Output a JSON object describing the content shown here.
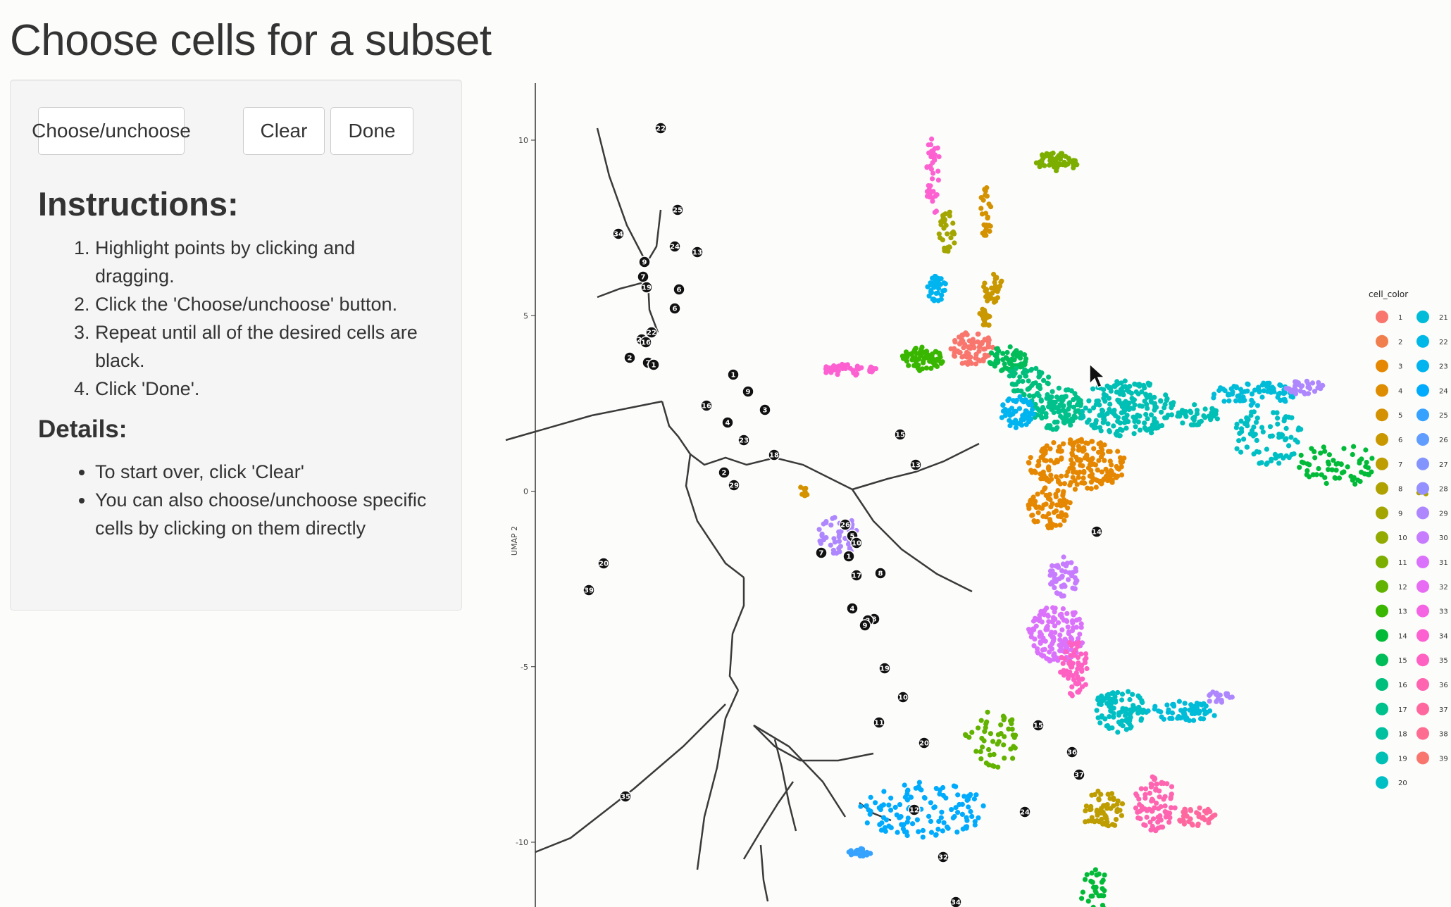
{
  "page": {
    "title": "Choose cells for a subset"
  },
  "sidebar": {
    "buttons": {
      "choose_label": "Choose/unchoose",
      "clear_label": "Clear",
      "done_label": "Done"
    },
    "instructions_heading": "Instructions:",
    "steps": [
      "Highlight points by clicking and dragging.",
      "Click the 'Choose/unchoose' button.",
      "Repeat until all of the desired cells are black.",
      "Click 'Done'."
    ],
    "details_heading": "Details:",
    "details": [
      "To start over, click 'Clear'",
      "You can also choose/unchoose specific cells by clicking on them directly"
    ]
  },
  "chart_data": {
    "type": "scatter",
    "ylabel": "UMAP 2",
    "xlabel": "",
    "ylim": [
      -12,
      11
    ],
    "yticks": [
      10,
      5,
      0,
      -5,
      -10
    ],
    "legend": {
      "title": "cell_color",
      "placement": "right",
      "entries": [
        "1",
        "2",
        "3",
        "4",
        "5",
        "6",
        "7",
        "8",
        "9",
        "10",
        "11",
        "12",
        "13",
        "14",
        "15",
        "16",
        "17",
        "18",
        "19",
        "20",
        "21",
        "22",
        "23",
        "24",
        "25",
        "26",
        "27",
        "28",
        "29",
        "30",
        "31",
        "32",
        "33",
        "34",
        "35",
        "36",
        "37",
        "38",
        "39"
      ],
      "colors": [
        "#F8766D",
        "#F07F4D",
        "#E58700",
        "#DE8C00",
        "#D49200",
        "#C99800",
        "#BD9D00",
        "#AFA100",
        "#A3A500",
        "#93AA00",
        "#7CAE00",
        "#62B200",
        "#39B600",
        "#00BA38",
        "#00BC59",
        "#00BF7D",
        "#00C08B",
        "#00C19F",
        "#00BFB5",
        "#00BFC4",
        "#00BCD8",
        "#00B8E7",
        "#00B4F0",
        "#00ABFD",
        "#35A2FF",
        "#619CFF",
        "#8494FF",
        "#9590FF",
        "#AE87FF",
        "#C77CFF",
        "#DB72FB",
        "#E76BF3",
        "#F564E3",
        "#FD61D1",
        "#FF61C3",
        "#FF64B0",
        "#FF689E",
        "#FF6C91",
        "#F8766D"
      ]
    },
    "graph_node_labels": [
      "22",
      "25",
      "34",
      "24",
      "13",
      "9",
      "7",
      "19",
      "6",
      "6",
      "21",
      "22",
      "16",
      "2",
      "7",
      "1",
      "1",
      "16",
      "9",
      "3",
      "4",
      "23",
      "18",
      "2",
      "29",
      "15",
      "13",
      "26",
      "5",
      "10",
      "7",
      "1",
      "8",
      "17",
      "4",
      "8",
      "3",
      "9",
      "19",
      "10",
      "11",
      "15",
      "20",
      "36",
      "37",
      "12",
      "24",
      "35",
      "32",
      "34",
      "39",
      "14",
      "20"
    ]
  }
}
